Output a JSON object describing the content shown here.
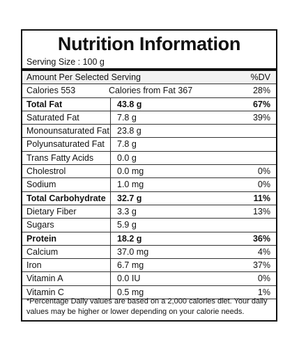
{
  "header": {
    "title": "Nutrition Information",
    "serving": "Serving Size : 100 g"
  },
  "table": {
    "columns": [
      "Amount Per Selected Serving",
      "%DV"
    ],
    "rows": [
      {
        "cells": [
          "Calories 553",
          "Calories from Fat 367",
          "28%"
        ]
      },
      {
        "cells": [
          "Total Fat",
          "43.8 g",
          "67%"
        ],
        "bold": true
      },
      {
        "cells": [
          "Saturated Fat",
          "7.8 g",
          "39%"
        ]
      },
      {
        "cells": [
          "Monounsaturated Fat",
          "23.8 g"
        ]
      },
      {
        "cells": [
          "Polyunsaturated Fat",
          "7.8 g"
        ]
      },
      {
        "cells": [
          "Trans Fatty Acids",
          "0.0 g"
        ]
      },
      {
        "cells": [
          "Cholestrol",
          "0.0 mg",
          "0%"
        ]
      },
      {
        "cells": [
          "Sodium",
          "1.0 mg",
          "0%"
        ]
      },
      {
        "cells": [
          "Total Carbohydrate",
          "32.7 g",
          "11%"
        ],
        "bold": true
      },
      {
        "cells": [
          "Dietary Fiber",
          "3.3 g",
          "13%"
        ]
      },
      {
        "cells": [
          "Sugars",
          "5.9 g"
        ]
      },
      {
        "cells": [
          "Protein",
          "18.2 g",
          "36%"
        ],
        "bold": true
      },
      {
        "cells": [
          "Calcium",
          "37.0 mg",
          "4%"
        ]
      },
      {
        "cells": [
          "Iron",
          "6.7 mg",
          "37%"
        ]
      },
      {
        "cells": [
          "Vitamin A",
          "0.0 IU",
          "0%"
        ]
      },
      {
        "cells": [
          "Vitamin C",
          "0.5 mg",
          "1%"
        ]
      }
    ]
  },
  "footnote": "*Percentage Daily values are based on a 2,000 calories diet. Your daily values may be higher or lower depending on your calorie needs."
}
